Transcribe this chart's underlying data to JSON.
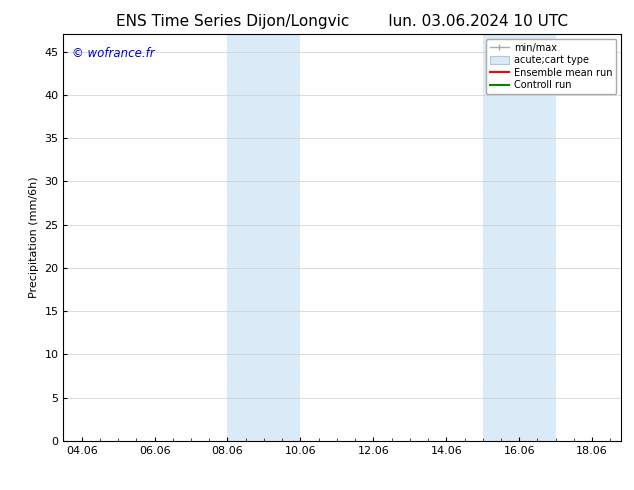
{
  "title_left": "ENS Time Series Dijon/Longvic",
  "title_right": "lun. 03.06.2024 10 UTC",
  "ylabel": "Precipitation (mm/6h)",
  "watermark": "© wofrance.fr",
  "watermark_color": "#0000cc",
  "background_color": "#ffffff",
  "plot_bg_color": "#ffffff",
  "shaded_regions": [
    {
      "xstart": 8.0,
      "xend": 10.0,
      "color": "#daeaf7"
    },
    {
      "xstart": 15.0,
      "xend": 17.0,
      "color": "#daeaf7"
    }
  ],
  "xtick_labels": [
    "04.06",
    "06.06",
    "08.06",
    "10.06",
    "12.06",
    "14.06",
    "16.06",
    "18.06"
  ],
  "xtick_positions": [
    4.0,
    6.0,
    8.0,
    10.0,
    12.0,
    14.0,
    16.0,
    18.0
  ],
  "xlim": [
    3.5,
    18.8
  ],
  "ylim": [
    0,
    47
  ],
  "ytick_positions": [
    0,
    5,
    10,
    15,
    20,
    25,
    30,
    35,
    40,
    45
  ],
  "grid_color": "#cccccc",
  "legend_items": [
    {
      "label": "min/max",
      "color": "#aaaaaa",
      "style": "errbar"
    },
    {
      "label": "acute;cart type",
      "color": "#daeaf7",
      "style": "rect"
    },
    {
      "label": "Ensemble mean run",
      "color": "#ff0000",
      "style": "line"
    },
    {
      "label": "Controll run",
      "color": "#008800",
      "style": "line"
    }
  ],
  "font_size": 8,
  "title_fontsize": 11,
  "tick_fontsize": 8
}
